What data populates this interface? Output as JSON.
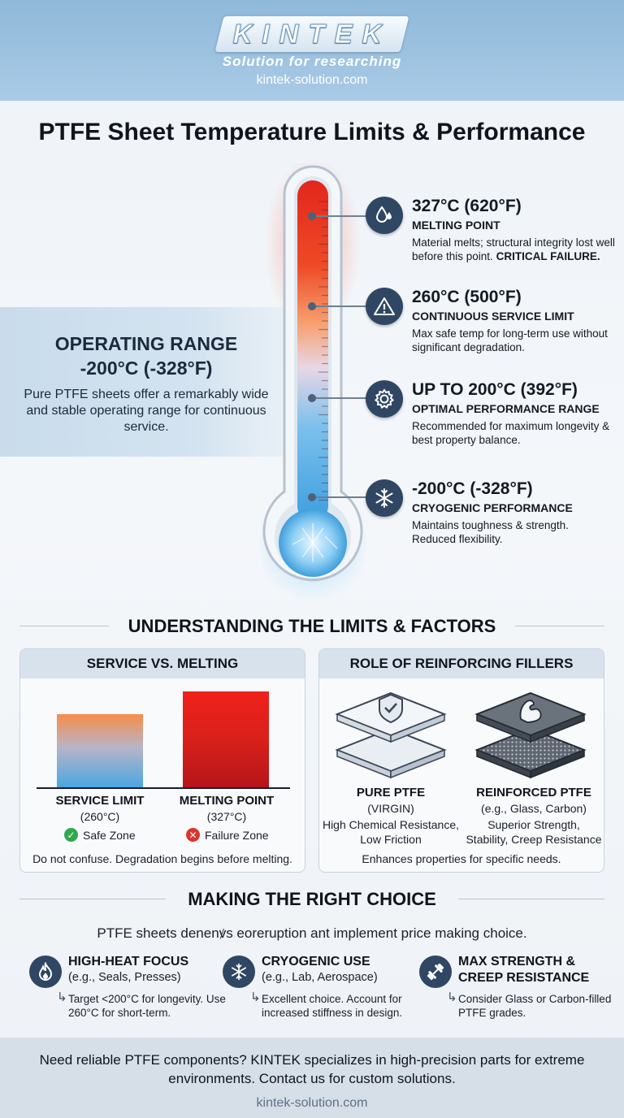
{
  "header": {
    "brand": "KINTEK",
    "tagline": "Solution for researching",
    "url": "kintek-solution.com"
  },
  "title": "PTFE Sheet Temperature Limits & Performance",
  "operating_range": {
    "title_line1": "OPERATING RANGE",
    "title_line2": "-200°C (-328°F)",
    "description": "Pure PTFE sheets offer a remarkably wide and stable operating range for continuous service."
  },
  "callouts": [
    {
      "icon": "droplet-icon",
      "temp": "327°C (620°F)",
      "label": "MELTING POINT",
      "desc": "Material melts; structural integrity lost well before this point.",
      "desc_bold": "CRITICAL FAILURE."
    },
    {
      "icon": "warning-icon",
      "temp": "260°C (500°F)",
      "label": "CONTINUOUS SERVICE LIMIT",
      "desc": "Max safe temp for long-term use without significant degradation.",
      "desc_bold": ""
    },
    {
      "icon": "gear-icon",
      "temp": "UP TO 200°C (392°F)",
      "label": "OPTIMAL PERFORMANCE RANGE",
      "desc": "Recommended for maximum longevity & best property balance.",
      "desc_bold": ""
    },
    {
      "icon": "snowflake-icon",
      "temp": "-200°C (-328°F)",
      "label": "CRYOGENIC PERFORMANCE",
      "desc": "Maintains toughness & strength. Reduced flexibility.",
      "desc_bold": ""
    }
  ],
  "limits_section": {
    "heading": "UNDERSTANDING THE LIMITS & FACTORS",
    "service_panel": {
      "title": "SERVICE VS. MELTING",
      "bars": [
        {
          "label": "SERVICE LIMIT",
          "sub": "(260°C)",
          "zone": "Safe Zone",
          "value_c": 260
        },
        {
          "label": "MELTING POINT",
          "sub": "(327°C)",
          "zone": "Failure Zone",
          "value_c": 327
        }
      ],
      "footnote": "Do not confuse. Degradation begins before melting."
    },
    "filler_panel": {
      "title": "ROLE OF REINFORCING FILLERS",
      "items": [
        {
          "label": "PURE PTFE",
          "sub": "(VIRGIN)",
          "desc_line1": "High Chemical Resistance,",
          "desc_line2": "Low Friction"
        },
        {
          "label": "REINFORCED PTFE",
          "sub": "(e.g., Glass, Carbon)",
          "desc_line1": "Superior Strength,",
          "desc_line2": "Stability, Creep Resistance"
        }
      ],
      "footnote": "Enhances properties for specific needs."
    }
  },
  "choice_section": {
    "heading": "MAKING THE RIGHT CHOICE",
    "intro": "PTFE sheets denenꝟs eoreruption ant implement price making choice.",
    "items": [
      {
        "icon": "flame-icon",
        "title": "HIGH-HEAT FOCUS",
        "sub": "(e.g., Seals, Presses)",
        "desc": "Target <200°C for longevity. Use 260°C for short-term."
      },
      {
        "icon": "snowflake-icon",
        "title": "CRYOGENIC USE",
        "sub": "(e.g., Lab, Aerospace)",
        "desc": "Excellent choice. Account for increased stiffness in design."
      },
      {
        "icon": "dumbbell-icon",
        "title": "MAX STRENGTH &",
        "title2": "CREEP RESISTANCE",
        "sub": "",
        "desc": "Consider Glass or Carbon-filled PTFE grades."
      }
    ]
  },
  "footer": {
    "text": "Need reliable PTFE components? KINTEK specializes in high-precision parts for extreme environments. Contact us for custom solutions.",
    "url": "kintek-solution.com"
  },
  "colors": {
    "icon_bg": "#2f4763",
    "hot": "#e3261d",
    "cold": "#4aa7e0",
    "safe": "#2fa84f",
    "fail": "#d9352b"
  }
}
